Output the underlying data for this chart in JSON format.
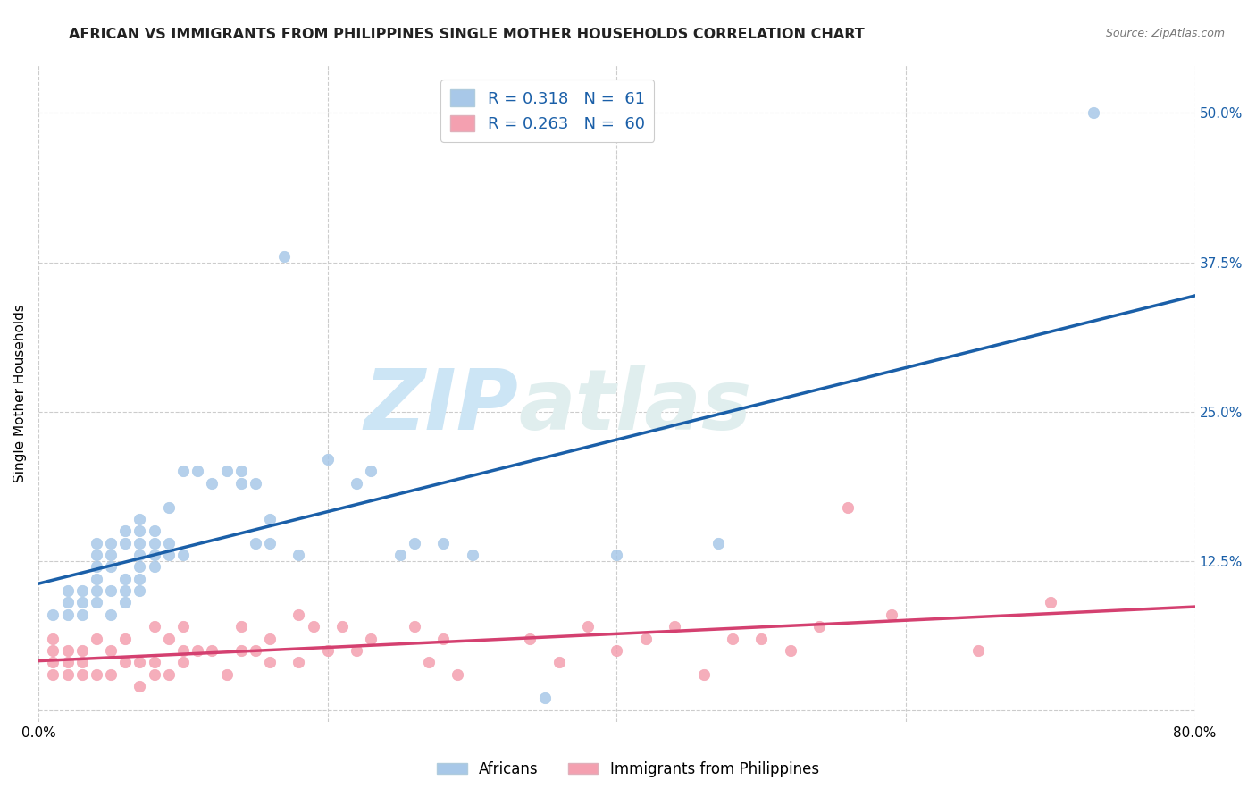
{
  "title": "AFRICAN VS IMMIGRANTS FROM PHILIPPINES SINGLE MOTHER HOUSEHOLDS CORRELATION CHART",
  "source": "Source: ZipAtlas.com",
  "ylabel": "Single Mother Households",
  "xlim": [
    0.0,
    0.8
  ],
  "ylim": [
    -0.01,
    0.54
  ],
  "xticks": [
    0.0,
    0.2,
    0.4,
    0.6,
    0.8
  ],
  "ytick_positions": [
    0.0,
    0.125,
    0.25,
    0.375,
    0.5
  ],
  "ytick_labels": [
    "",
    "12.5%",
    "25.0%",
    "37.5%",
    "50.0%"
  ],
  "background_color": "#ffffff",
  "grid_color": "#cccccc",
  "watermark_zip": "ZIP",
  "watermark_atlas": "atlas",
  "watermark_color": "#cce5f5",
  "legend_R1": "R = 0.318",
  "legend_N1": "N =  61",
  "legend_R2": "R = 0.263",
  "legend_N2": "N =  60",
  "blue_scatter_color": "#a8c8e8",
  "pink_scatter_color": "#f4a0b0",
  "blue_line_color": "#1a5fa8",
  "pink_line_color": "#d44070",
  "africans_label": "Africans",
  "philippines_label": "Immigrants from Philippines",
  "title_fontsize": 11.5,
  "axis_label_fontsize": 11,
  "tick_fontsize": 11,
  "africans_x": [
    0.01,
    0.02,
    0.02,
    0.02,
    0.03,
    0.03,
    0.03,
    0.04,
    0.04,
    0.04,
    0.04,
    0.04,
    0.04,
    0.05,
    0.05,
    0.05,
    0.05,
    0.05,
    0.06,
    0.06,
    0.06,
    0.06,
    0.06,
    0.07,
    0.07,
    0.07,
    0.07,
    0.07,
    0.07,
    0.07,
    0.08,
    0.08,
    0.08,
    0.08,
    0.09,
    0.09,
    0.09,
    0.1,
    0.1,
    0.11,
    0.12,
    0.13,
    0.14,
    0.14,
    0.15,
    0.15,
    0.16,
    0.16,
    0.17,
    0.18,
    0.2,
    0.22,
    0.23,
    0.25,
    0.26,
    0.28,
    0.3,
    0.35,
    0.4,
    0.47,
    0.73
  ],
  "africans_y": [
    0.08,
    0.08,
    0.09,
    0.1,
    0.08,
    0.09,
    0.1,
    0.09,
    0.1,
    0.11,
    0.12,
    0.13,
    0.14,
    0.08,
    0.1,
    0.12,
    0.13,
    0.14,
    0.09,
    0.1,
    0.11,
    0.14,
    0.15,
    0.1,
    0.11,
    0.12,
    0.13,
    0.14,
    0.15,
    0.16,
    0.12,
    0.13,
    0.14,
    0.15,
    0.13,
    0.14,
    0.17,
    0.13,
    0.2,
    0.2,
    0.19,
    0.2,
    0.19,
    0.2,
    0.14,
    0.19,
    0.14,
    0.16,
    0.38,
    0.13,
    0.21,
    0.19,
    0.2,
    0.13,
    0.14,
    0.14,
    0.13,
    0.01,
    0.13,
    0.14,
    0.5
  ],
  "philippines_x": [
    0.01,
    0.01,
    0.01,
    0.01,
    0.02,
    0.02,
    0.02,
    0.03,
    0.03,
    0.03,
    0.04,
    0.04,
    0.05,
    0.05,
    0.06,
    0.06,
    0.07,
    0.07,
    0.08,
    0.08,
    0.08,
    0.09,
    0.09,
    0.1,
    0.1,
    0.1,
    0.11,
    0.12,
    0.13,
    0.14,
    0.14,
    0.15,
    0.16,
    0.16,
    0.18,
    0.18,
    0.19,
    0.2,
    0.21,
    0.22,
    0.23,
    0.26,
    0.27,
    0.28,
    0.29,
    0.34,
    0.36,
    0.38,
    0.4,
    0.42,
    0.44,
    0.46,
    0.48,
    0.5,
    0.52,
    0.54,
    0.56,
    0.59,
    0.65,
    0.7
  ],
  "philippines_y": [
    0.03,
    0.04,
    0.05,
    0.06,
    0.03,
    0.04,
    0.05,
    0.03,
    0.04,
    0.05,
    0.03,
    0.06,
    0.03,
    0.05,
    0.04,
    0.06,
    0.02,
    0.04,
    0.03,
    0.04,
    0.07,
    0.03,
    0.06,
    0.04,
    0.05,
    0.07,
    0.05,
    0.05,
    0.03,
    0.05,
    0.07,
    0.05,
    0.04,
    0.06,
    0.04,
    0.08,
    0.07,
    0.05,
    0.07,
    0.05,
    0.06,
    0.07,
    0.04,
    0.06,
    0.03,
    0.06,
    0.04,
    0.07,
    0.05,
    0.06,
    0.07,
    0.03,
    0.06,
    0.06,
    0.05,
    0.07,
    0.17,
    0.08,
    0.05,
    0.09
  ]
}
